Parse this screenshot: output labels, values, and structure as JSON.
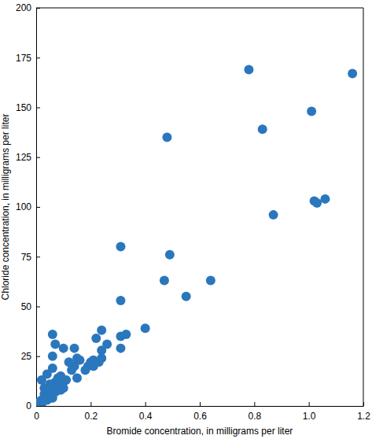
{
  "chart_data": {
    "type": "scatter",
    "x_label": "Bromide concentration, in milligrams per liter",
    "y_label": "Chloride concentration, in milligrams per liter",
    "color": "#2a77bd",
    "marker": "circle",
    "x": [
      0.78,
      1.16,
      1.01,
      0.83,
      0.48,
      1.02,
      1.03,
      1.06,
      0.87,
      0.31,
      0.49,
      0.47,
      0.64,
      0.55,
      0.31,
      0.4,
      0.33,
      0.31,
      0.31,
      0.24,
      0.26,
      0.24,
      0.22,
      0.06,
      0.07,
      0.1,
      0.14,
      0.06,
      0.15,
      0.16,
      0.2,
      0.21,
      0.23,
      0.24,
      0.19,
      0.21,
      0.18,
      0.12,
      0.14,
      0.13,
      0.15,
      0.11,
      0.09,
      0.1,
      0.08,
      0.07,
      0.06,
      0.08,
      0.04,
      0.02,
      0.09,
      0.06,
      0.05,
      0.04,
      0.03,
      0.05,
      0.06,
      0.02,
      0.01,
      0.02,
      0.03,
      0.04,
      0.05,
      0.09,
      0.1,
      0.07,
      0.03,
      0.01
    ],
    "values": [
      169,
      167,
      148,
      139,
      135,
      103,
      102,
      104,
      96,
      80,
      76,
      63,
      63,
      55,
      53,
      39,
      36,
      35,
      29,
      38,
      31,
      28,
      34,
      36,
      31,
      29,
      29,
      25,
      24,
      23,
      22,
      23,
      22,
      24,
      20,
      20,
      18,
      22,
      20,
      18,
      14,
      13,
      15,
      12,
      13,
      12,
      19,
      14,
      16,
      13,
      10,
      9,
      8,
      7,
      6,
      5,
      4,
      3,
      2,
      1,
      4,
      3,
      11,
      8,
      9,
      7,
      9,
      1
    ],
    "xlim": [
      0,
      1.2
    ],
    "xticks": [
      0,
      0.2,
      0.4,
      0.6,
      0.8,
      {
        "value": 1,
        "label": "1.0"
      },
      1.2
    ],
    "ylim": [
      0,
      200
    ],
    "yticks": [
      0,
      25,
      50,
      75,
      100,
      125,
      150,
      175,
      200
    ]
  }
}
